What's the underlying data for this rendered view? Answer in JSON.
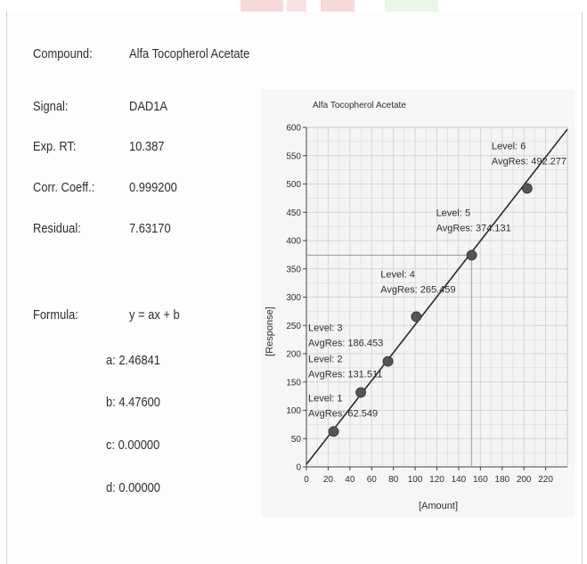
{
  "report": {
    "fields": [
      {
        "label": "Compound:",
        "value": "Alfa Tocopherol Acetate"
      },
      {
        "label": "Signal:",
        "value": "DAD1A"
      },
      {
        "label": "Exp. RT:",
        "value": "10.387"
      },
      {
        "label": "Corr. Coeff.:",
        "value": "0.999200"
      },
      {
        "label": "Residual:",
        "value": "7.63170"
      }
    ],
    "formula": {
      "label": "Formula:",
      "expression": "y = ax + b",
      "coefficients": [
        "a: 2.46841",
        "b: 4.47600",
        "c: 0.00000",
        "d: 0.00000"
      ]
    }
  },
  "chart_data": {
    "type": "scatter",
    "title": "Alfa Tocopherol Acetate",
    "xlabel": "[Amount]",
    "ylabel": "[Response]",
    "xlim": [
      0,
      240
    ],
    "ylim": [
      0,
      600
    ],
    "xticks": [
      0,
      20,
      40,
      60,
      80,
      100,
      120,
      140,
      160,
      180,
      200,
      220
    ],
    "yticks": [
      0,
      50,
      100,
      150,
      200,
      250,
      300,
      350,
      400,
      450,
      500,
      550,
      600
    ],
    "grid": true,
    "points": [
      {
        "x": 25,
        "y": 62.549,
        "level": "Level: 1",
        "avg": "AvgRes: 62.549"
      },
      {
        "x": 50,
        "y": 131.511,
        "level": "Level: 2",
        "avg": "AvgRes: 131.511"
      },
      {
        "x": 75,
        "y": 186.453,
        "level": "Level: 3",
        "avg": "AvgRes: 186.453"
      },
      {
        "x": 101,
        "y": 265.459,
        "level": "Level: 4",
        "avg": "AvgRes: 265.459"
      },
      {
        "x": 152,
        "y": 374.131,
        "level": "Level: 5",
        "avg": "AvgRes: 374.131"
      },
      {
        "x": 203,
        "y": 492.277,
        "level": "Level: 6",
        "avg": "AvgRes: 492.277"
      }
    ],
    "fit_line": {
      "slope": 2.46841,
      "intercept": 4.476,
      "x_range": [
        0,
        240
      ]
    },
    "highlight": {
      "x": 152,
      "y": 374.131
    },
    "colors": {
      "line": "#2a2a2a",
      "point": "#555555",
      "grid": "#d4d4d4",
      "plot_bg": "#f4f4f4"
    }
  }
}
